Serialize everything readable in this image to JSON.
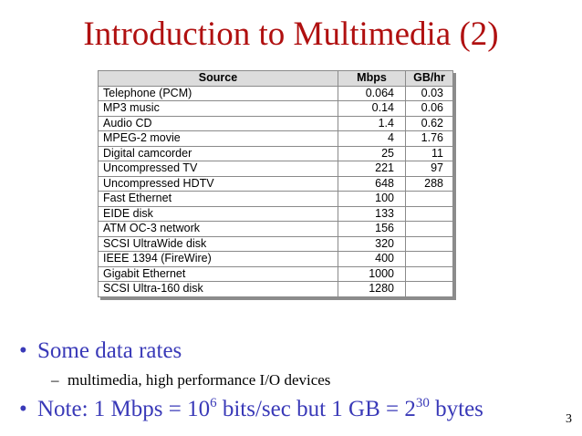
{
  "slide": {
    "title": "Introduction to Multimedia (2)",
    "page_number": "3"
  },
  "table": {
    "headers": {
      "source": "Source",
      "mbps": "Mbps",
      "gbhr": "GB/hr"
    },
    "rows": [
      {
        "source": "Telephone (PCM)",
        "mbps": "0.064",
        "gbhr": "0.03"
      },
      {
        "source": "MP3 music",
        "mbps": "0.14",
        "gbhr": "0.06"
      },
      {
        "source": "Audio CD",
        "mbps": "1.4",
        "gbhr": "0.62"
      },
      {
        "source": "MPEG-2 movie",
        "mbps": "4",
        "gbhr": "1.76"
      },
      {
        "source": "Digital camcorder",
        "mbps": "25",
        "gbhr": "11"
      },
      {
        "source": "Uncompressed TV",
        "mbps": "221",
        "gbhr": "97"
      },
      {
        "source": "Uncompressed HDTV",
        "mbps": "648",
        "gbhr": "288"
      },
      {
        "source": "Fast Ethernet",
        "mbps": "100",
        "gbhr": ""
      },
      {
        "source": "EIDE disk",
        "mbps": "133",
        "gbhr": ""
      },
      {
        "source": "ATM OC-3 network",
        "mbps": "156",
        "gbhr": ""
      },
      {
        "source": "SCSI UltraWide disk",
        "mbps": "320",
        "gbhr": ""
      },
      {
        "source": "IEEE 1394 (FireWire)",
        "mbps": "400",
        "gbhr": ""
      },
      {
        "source": "Gigabit Ethernet",
        "mbps": "1000",
        "gbhr": ""
      },
      {
        "source": "SCSI Ultra-160 disk",
        "mbps": "1280",
        "gbhr": ""
      }
    ]
  },
  "bullets": {
    "first": "Some data rates",
    "sub": "multimedia, high performance I/O devices",
    "note_prefix": "Note: 1 Mbps = 10",
    "note_exp1": "6",
    "note_middle": " bits/sec but 1 GB = 2",
    "note_exp2": "30",
    "note_suffix": " bytes"
  },
  "colors": {
    "title": "#b01010",
    "bullet_text": "#3a3ab8",
    "header_bg": "#dcdcdc"
  }
}
